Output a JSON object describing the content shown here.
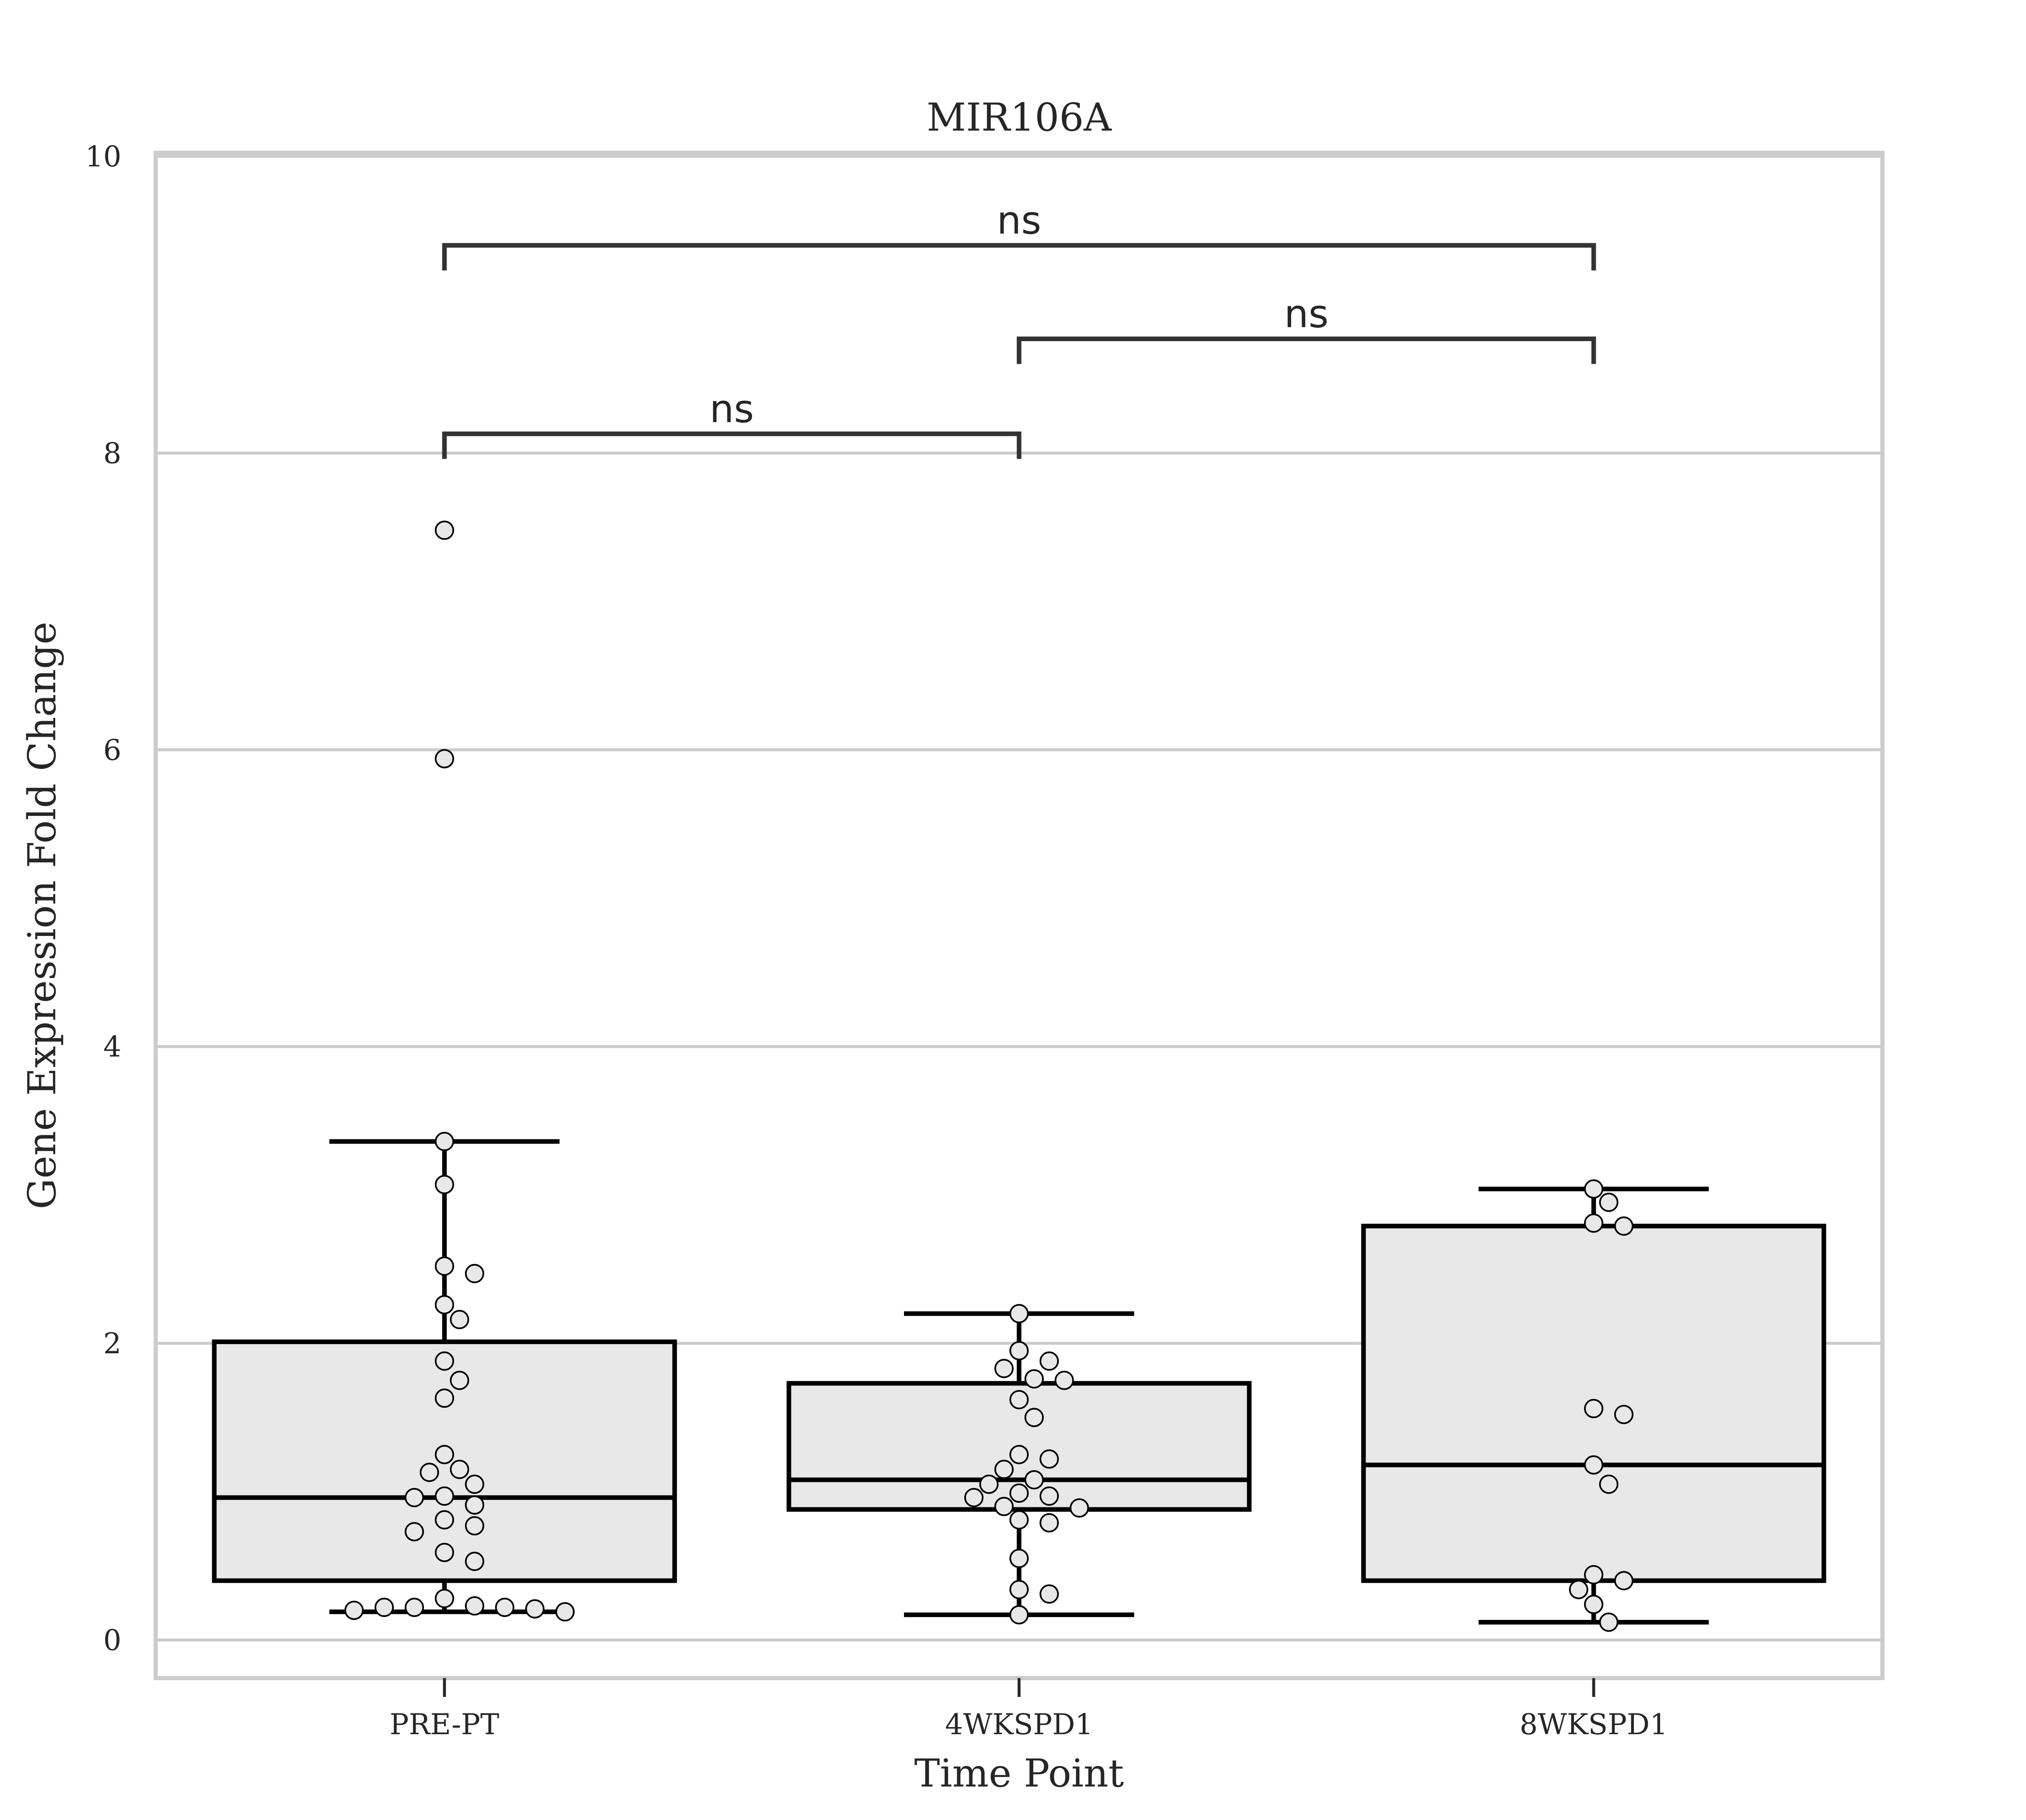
{
  "chart_data": {
    "type": "box",
    "title": "MIR106A",
    "xlabel": "Time Point",
    "ylabel": "Gene Expression Fold Change",
    "ylim": [
      -0.25,
      10
    ],
    "yticks": [
      0,
      2,
      4,
      6,
      8,
      10
    ],
    "grid": true,
    "categories": [
      "PRE-PT",
      "4WKSPD1",
      "8WKSPD1"
    ],
    "boxes": [
      {
        "category": "PRE-PT",
        "whislo": 0.19,
        "q1": 0.4,
        "median": 0.96,
        "q3": 2.01,
        "whishi": 3.36
      },
      {
        "category": "4WKSPD1",
        "whislo": 0.17,
        "q1": 0.88,
        "median": 1.08,
        "q3": 1.73,
        "whishi": 2.2
      },
      {
        "category": "8WKSPD1",
        "whislo": 0.12,
        "q1": 0.4,
        "median": 1.18,
        "q3": 2.79,
        "whishi": 3.04
      }
    ],
    "points": [
      [
        7.48,
        5.94,
        3.36,
        3.07,
        2.52,
        2.47,
        2.26,
        2.16,
        1.88,
        1.75,
        1.63,
        1.25,
        1.15,
        1.13,
        1.05,
        0.97,
        0.96,
        0.91,
        0.81,
        0.77,
        0.73,
        0.59,
        0.53,
        0.28,
        0.23,
        0.22,
        0.22,
        0.22,
        0.21,
        0.2,
        0.19
      ],
      [
        2.2,
        1.95,
        1.88,
        1.83,
        1.76,
        1.75,
        1.62,
        1.5,
        1.25,
        1.22,
        1.15,
        1.08,
        1.05,
        0.99,
        0.97,
        0.96,
        0.9,
        0.89,
        0.81,
        0.79,
        0.55,
        0.34,
        0.31,
        0.17
      ],
      [
        3.04,
        2.95,
        2.81,
        2.79,
        1.56,
        1.52,
        1.18,
        1.05,
        0.44,
        0.4,
        0.34,
        0.24,
        0.12
      ]
    ],
    "annotations": [
      {
        "from": "PRE-PT",
        "to": "4WKSPD1",
        "text": "ns"
      },
      {
        "from": "4WKSPD1",
        "to": "8WKSPD1",
        "text": "ns"
      },
      {
        "from": "PRE-PT",
        "to": "8WKSPD1",
        "text": "ns"
      }
    ]
  }
}
